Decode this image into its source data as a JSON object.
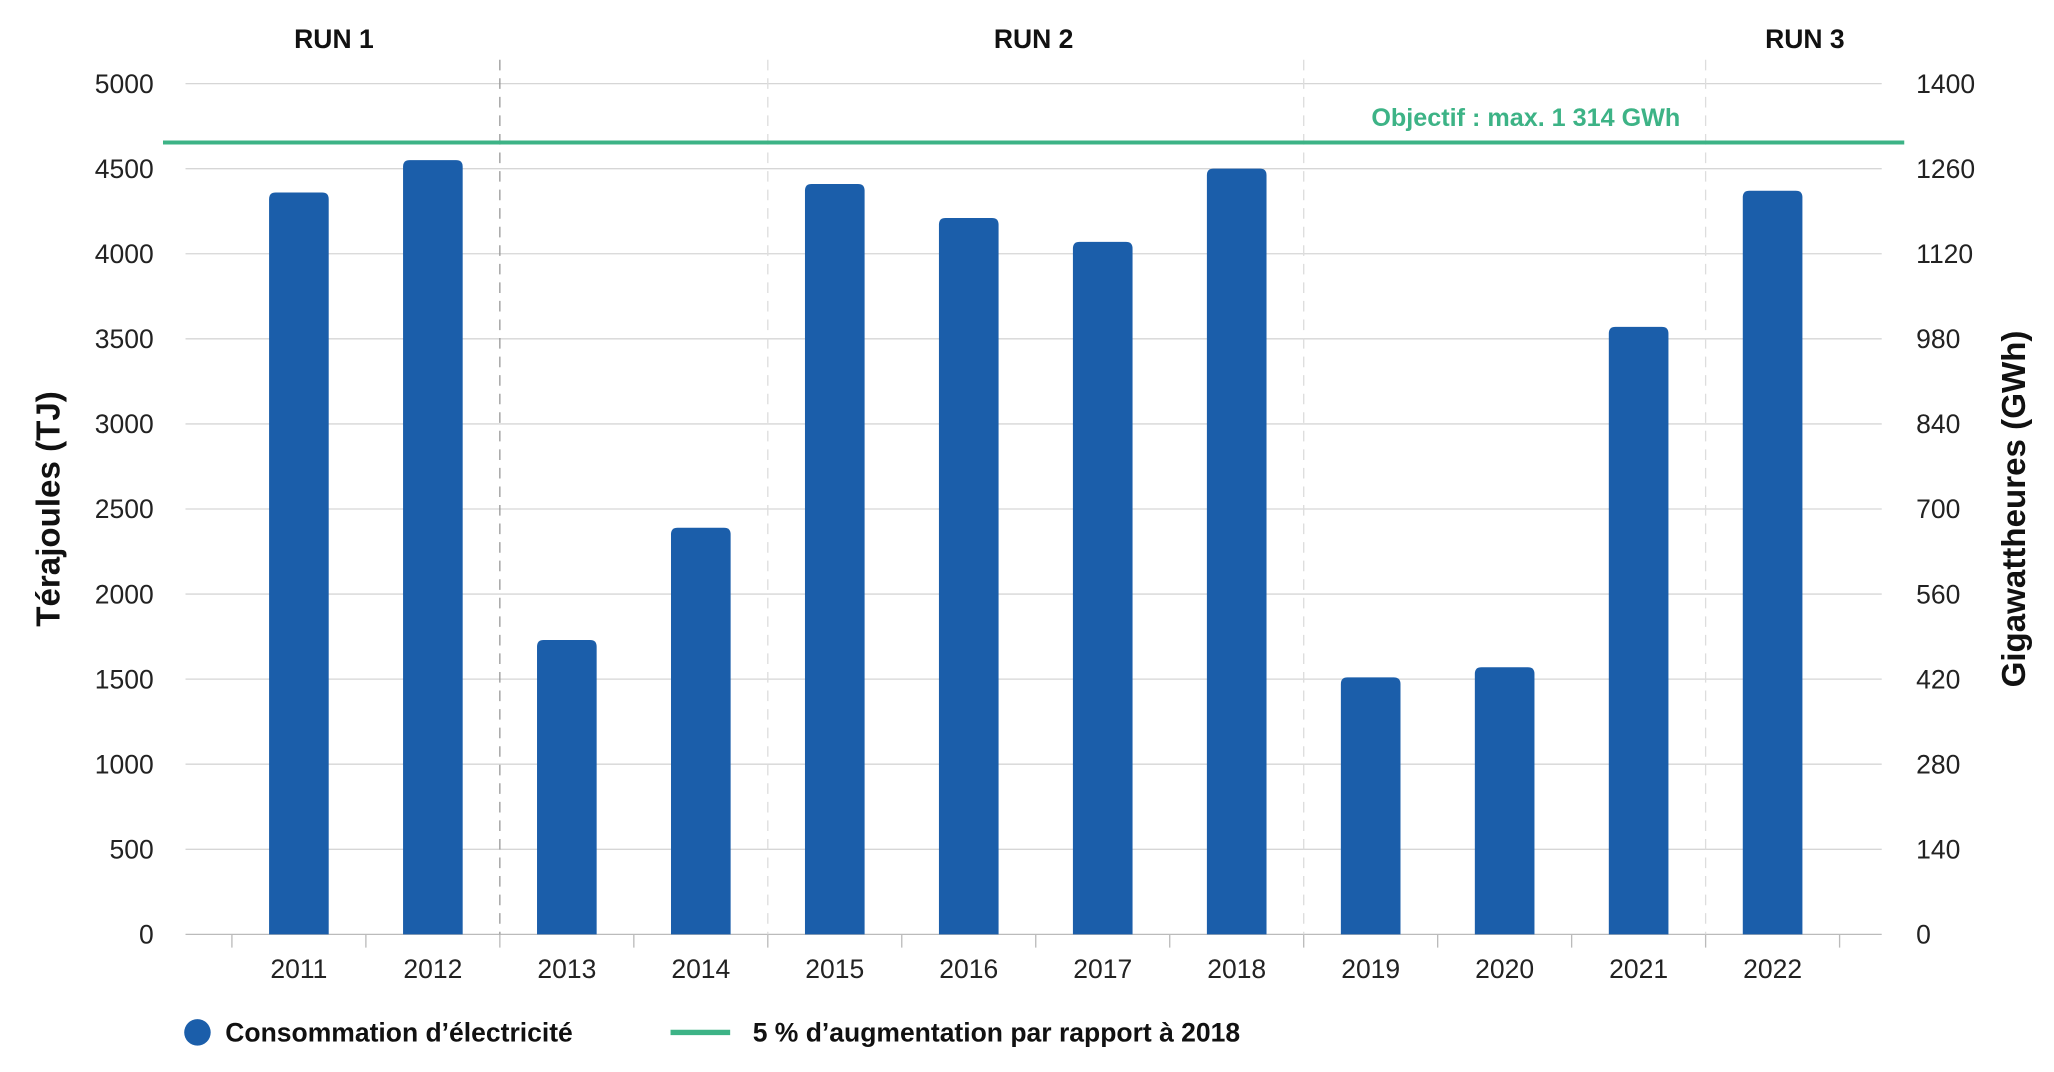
{
  "chart_data": {
    "type": "bar",
    "categories": [
      "2011",
      "2012",
      "2013",
      "2014",
      "2015",
      "2016",
      "2017",
      "2018",
      "2019",
      "2020",
      "2021",
      "2022"
    ],
    "series": [
      {
        "name": "Consommation d’électricité",
        "values": [
          4360,
          4550,
          1730,
          2390,
          4410,
          4210,
          4070,
          4500,
          1510,
          1570,
          3570,
          4370
        ],
        "color": "#1b5eaa"
      }
    ],
    "target_line": {
      "name": "5 % d’augmentation par rapport à 2018",
      "label": "Objectif : max. 1 314 GWh",
      "value_gwh": 1314,
      "color": "#3db386"
    },
    "ylabel": "Térajoules (TJ)",
    "ylabel_right": "Gigawattheures (GWh)",
    "ylim": [
      0,
      5000
    ],
    "ylim_right": [
      0,
      1400
    ],
    "yticks": [
      "0",
      "500",
      "1000",
      "1500",
      "2000",
      "2500",
      "3000",
      "3500",
      "4000",
      "4500",
      "5000"
    ],
    "yticks_right": [
      "0",
      "140",
      "280",
      "420",
      "560",
      "700",
      "840",
      "980",
      "1120",
      "1260",
      "1400"
    ],
    "grid": true,
    "legend_position": "bottom-left",
    "runs": [
      {
        "label": "RUN 1",
        "from": "2011",
        "to": "2012"
      },
      {
        "label": "RUN 2",
        "from": "2015",
        "to": "2018"
      },
      {
        "label": "RUN 3",
        "from": "2022",
        "to": "2022"
      }
    ]
  }
}
